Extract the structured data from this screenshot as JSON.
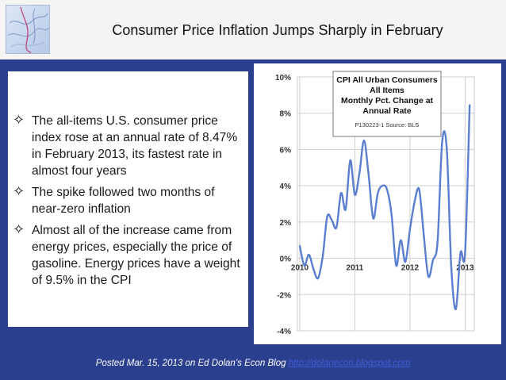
{
  "slide": {
    "title": "Consumer Price Inflation Jumps Sharply in February",
    "bullets": [
      "The all-items U.S. consumer price index rose at an annual rate of 8.47% in February 2013, its fastest rate in almost four years",
      "The spike followed two months of near-zero inflation",
      "Almost all of the increase came from energy prices, especially the price of gasoline. Energy prices have a weight of 9.5% in the CPI"
    ],
    "bullet_icon": "four-point-star-icon",
    "footer_text": "Posted Mar. 15, 2013 on Ed Dolan’s Econ Blog",
    "footer_link": "http://dolanecon.blogspot.com",
    "colors": {
      "background": "#2b3f8f",
      "line": "#5b7fcf",
      "link": "#3f5fd8"
    }
  },
  "chart_data": {
    "type": "line",
    "title_lines": [
      "CPI All Urban Consumers",
      "All Items",
      "Monthly Pct. Change at",
      "Annual Rate"
    ],
    "source": "P130223-1 Source: BLS",
    "y_ticks": [
      "10%",
      "8%",
      "6%",
      "4%",
      "2%",
      "0%",
      "-2%",
      "-4%"
    ],
    "y_tick_values": [
      10,
      8,
      6,
      4,
      2,
      0,
      -2,
      -4
    ],
    "x_ticks": [
      "2010",
      "2011",
      "2012",
      "2013"
    ],
    "x_tick_values": [
      0,
      12,
      24,
      36
    ],
    "ylim": [
      -4,
      10
    ],
    "xlim": [
      -0.5,
      38
    ],
    "grid": true,
    "series": [
      {
        "x": [
          0,
          1,
          2,
          3,
          4,
          5,
          6,
          7,
          8,
          9,
          10,
          11,
          12,
          13,
          14,
          15,
          16,
          17,
          18,
          19,
          20,
          21,
          22,
          23,
          24,
          25,
          26,
          27,
          28,
          29,
          30,
          31,
          32,
          33,
          34,
          35,
          36,
          37
        ],
        "values": [
          0.7,
          -0.4,
          0.2,
          -0.6,
          -1.1,
          0.1,
          2.3,
          2.1,
          1.7,
          3.6,
          2.7,
          5.4,
          3.5,
          4.7,
          6.5,
          4.6,
          2.2,
          3.6,
          4.0,
          3.8,
          2.4,
          -0.4,
          1.0,
          -0.2,
          1.6,
          3.1,
          3.8,
          1.3,
          -1.0,
          -0.1,
          0.9,
          6.4,
          6.1,
          -0.5,
          -2.8,
          0.3,
          0.3,
          8.47
        ]
      }
    ]
  }
}
